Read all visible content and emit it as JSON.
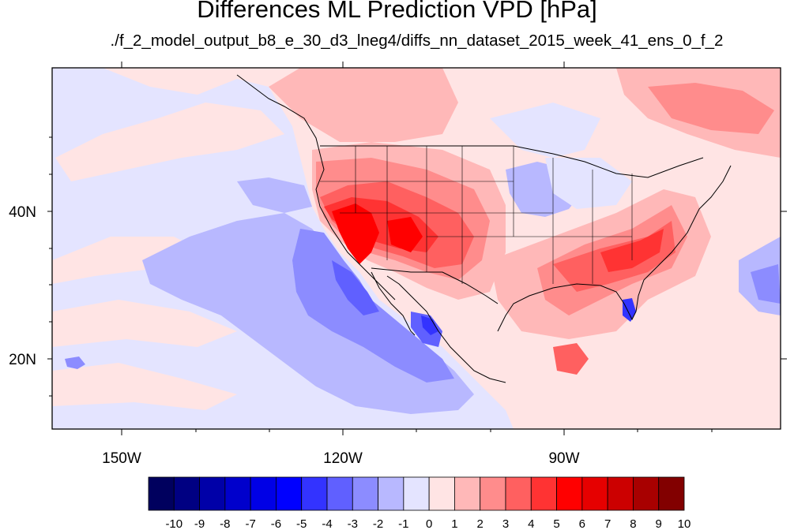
{
  "title": "Differences ML Prediction VPD [hPa]",
  "subtitle": "./f_2_model_output_b8_e_30_d3_lneg4/diffs_nn_dataset_2015_week_41_ens_0_f_2",
  "lat_labels": [
    "40N",
    "20N"
  ],
  "lon_labels": [
    "150W",
    "120W",
    "90W"
  ],
  "colorbar": {
    "labels": [
      "-10",
      "-9",
      "-8",
      "-7",
      "-6",
      "-5",
      "-4",
      "-3",
      "-2",
      "-1",
      "0",
      "1",
      "2",
      "3",
      "4",
      "5",
      "6",
      "7",
      "8",
      "9",
      "10"
    ],
    "colors": [
      "#00005e",
      "#000082",
      "#0000a8",
      "#0000cc",
      "#0000e6",
      "#0000ff",
      "#3333ff",
      "#6060ff",
      "#8c8cff",
      "#b8b8ff",
      "#e4e4ff",
      "#ffe4e4",
      "#ffb8b8",
      "#ff8c8c",
      "#ff6060",
      "#ff3333",
      "#ff0000",
      "#e60000",
      "#cc0000",
      "#a80000",
      "#820000"
    ]
  },
  "palette": {
    "pale_blue": "#e4e4ff",
    "pale_red": "#ffe4e4",
    "light_blue": "#b8b8ff",
    "mid_blue": "#8c8cff",
    "blue": "#6060ff",
    "strong_blue": "#3333ff",
    "light_red": "#ffb8b8",
    "mid_red": "#ff8c8c",
    "red": "#ff6060",
    "strong_red": "#ff3333",
    "bright_red": "#ff0000",
    "dark_red": "#cc0000",
    "coastline": "#000000"
  }
}
